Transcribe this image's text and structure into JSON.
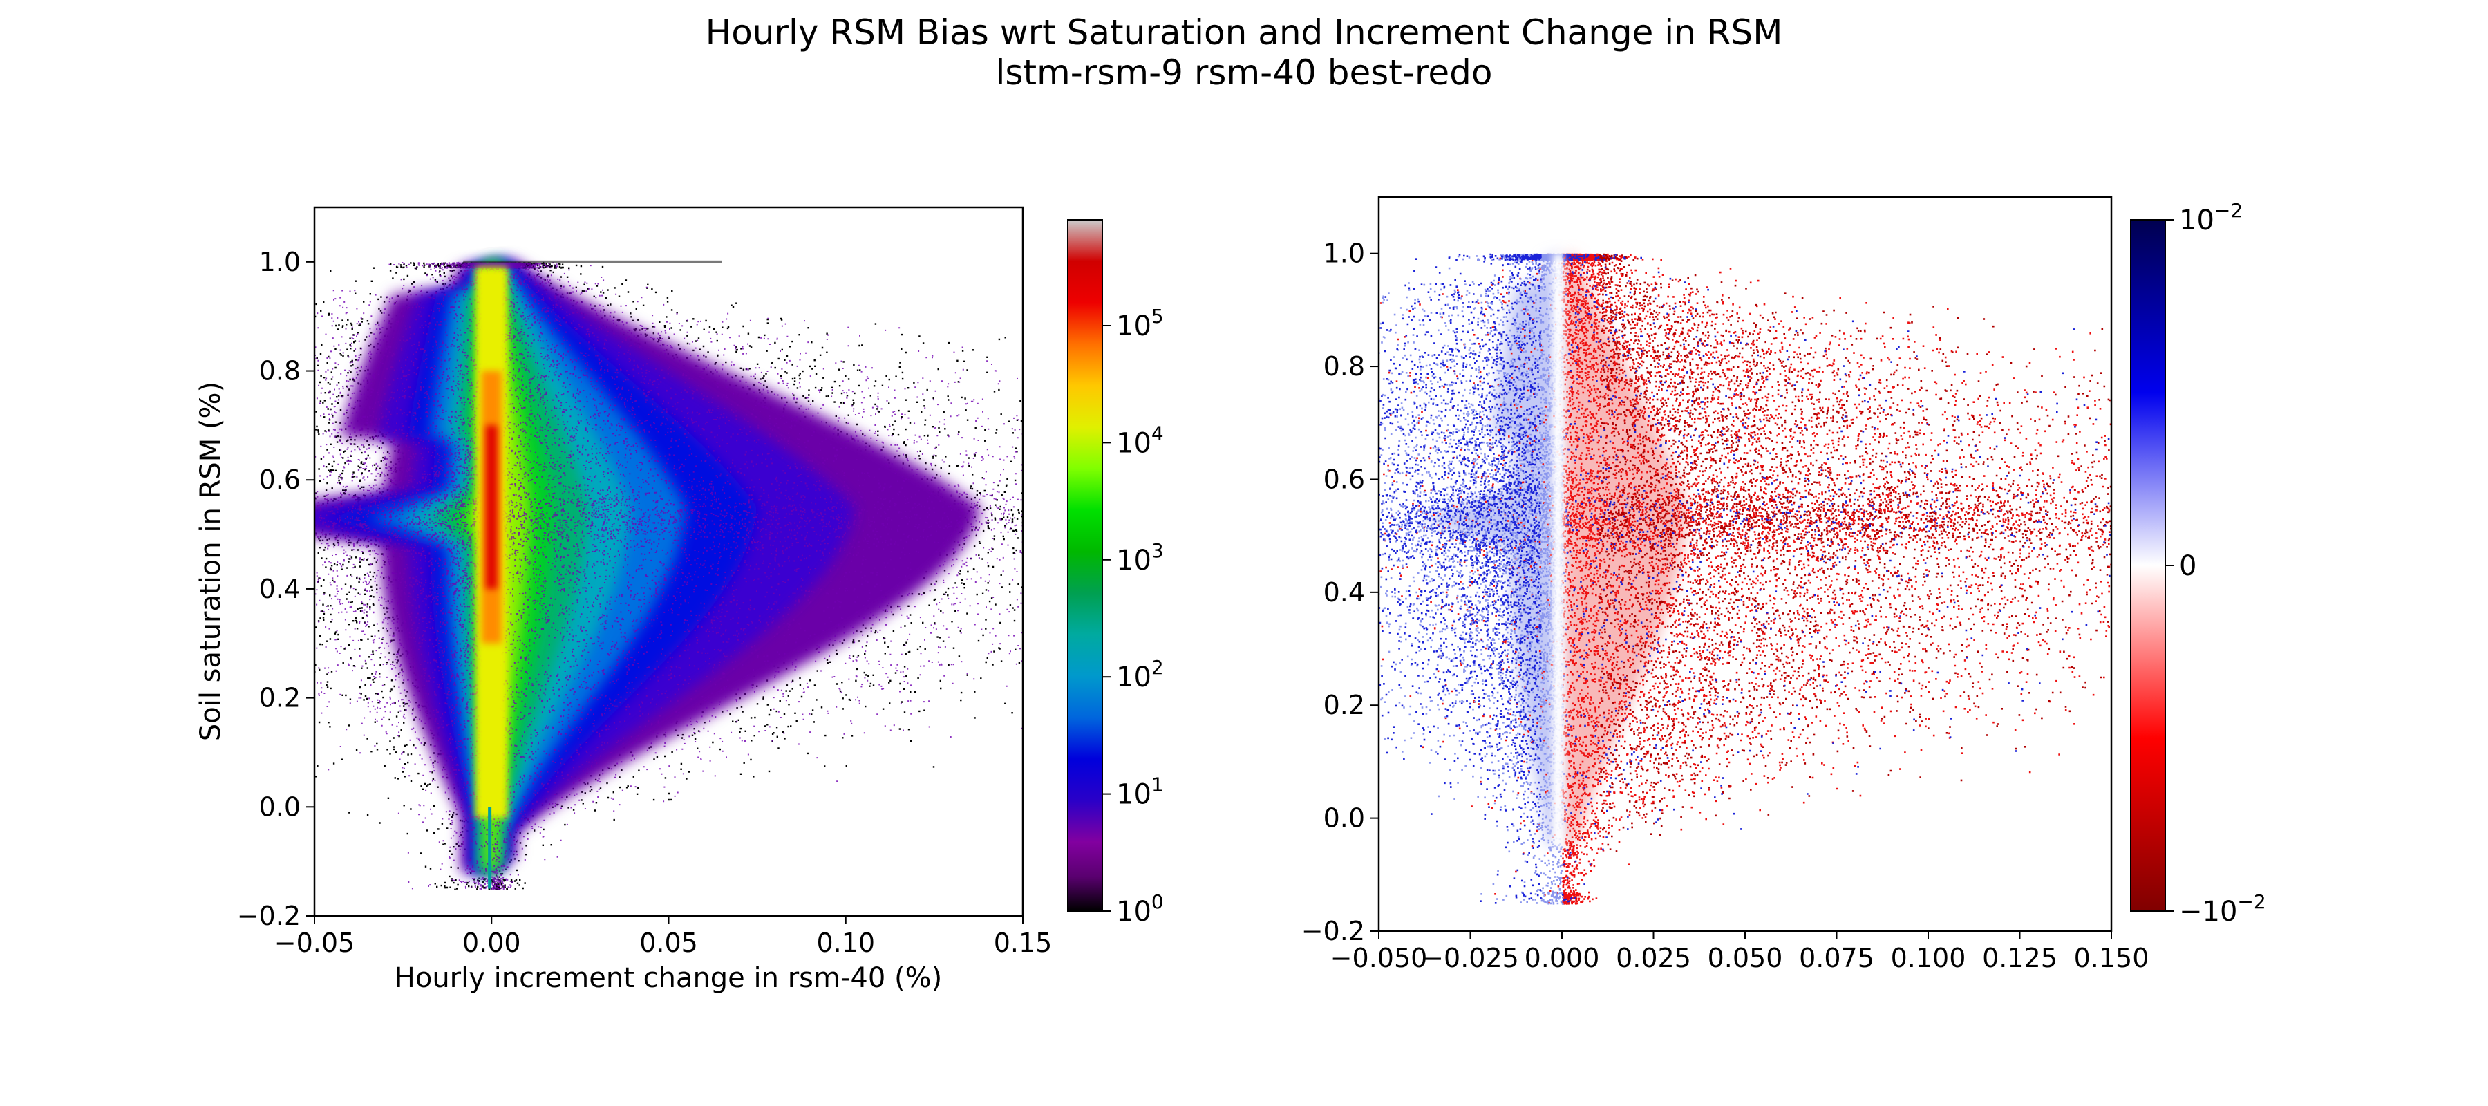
{
  "figure": {
    "title": "Hourly RSM Bias wrt Saturation and Increment Change in RSM",
    "subtitle": "lstm-rsm-9 rsm-40 best-redo"
  },
  "chart_data": [
    {
      "type": "heatmap",
      "description_role": "2D histogram (point density)",
      "xlabel": "Hourly increment change in rsm-40 (%)",
      "ylabel": "Soil saturation in RSM (%)",
      "xlim": [
        -0.05,
        0.15
      ],
      "ylim": [
        -0.2,
        1.1
      ],
      "x_ticks": [
        -0.05,
        0.0,
        0.05,
        0.1,
        0.15
      ],
      "x_tick_labels": [
        "−0.05",
        "0.00",
        "0.05",
        "0.10",
        "0.15"
      ],
      "y_ticks": [
        -0.2,
        0.0,
        0.2,
        0.4,
        0.6,
        0.8,
        1.0
      ],
      "y_tick_labels": [
        "−0.2",
        "0.0",
        "0.2",
        "0.4",
        "0.6",
        "0.8",
        "1.0"
      ],
      "grid": false,
      "colorbar": {
        "scale": "log",
        "colormap": "nipy_spectral",
        "range": [
          1,
          800000
        ],
        "ticks": [
          1,
          10,
          100,
          1000,
          10000,
          100000
        ],
        "tick_labels": [
          {
            "base": "10",
            "exp": "0"
          },
          {
            "base": "10",
            "exp": "1"
          },
          {
            "base": "10",
            "exp": "2"
          },
          {
            "base": "10",
            "exp": "3"
          },
          {
            "base": "10",
            "exp": "4"
          },
          {
            "base": "10",
            "exp": "5"
          }
        ]
      }
    },
    {
      "type": "heatmap",
      "description_role": "mean bias per bin (diverging)",
      "xlabel": "",
      "ylabel": "",
      "xlim": [
        -0.05,
        0.15
      ],
      "ylim": [
        -0.2,
        1.1
      ],
      "x_ticks": [
        -0.05,
        -0.025,
        0.0,
        0.025,
        0.05,
        0.075,
        0.1,
        0.125,
        0.15
      ],
      "x_tick_labels": [
        "−0.050",
        "−0.025",
        "0.000",
        "0.025",
        "0.050",
        "0.075",
        "0.100",
        "0.125",
        "0.150"
      ],
      "y_ticks": [
        -0.2,
        0.0,
        0.2,
        0.4,
        0.6,
        0.8,
        1.0
      ],
      "y_tick_labels": [
        "−0.2",
        "0.0",
        "0.2",
        "0.4",
        "0.6",
        "0.8",
        "1.0"
      ],
      "grid": false,
      "colorbar": {
        "scale": "symlog",
        "colormap": "seismic_r",
        "range": [
          -0.01,
          0.01
        ],
        "ticks": [
          0.01,
          0,
          -0.01
        ],
        "tick_labels": [
          {
            "base": "10",
            "exp": "−2"
          },
          {
            "base": "0",
            "exp": ""
          },
          {
            "base": "−10",
            "exp": "−2"
          }
        ]
      }
    }
  ]
}
